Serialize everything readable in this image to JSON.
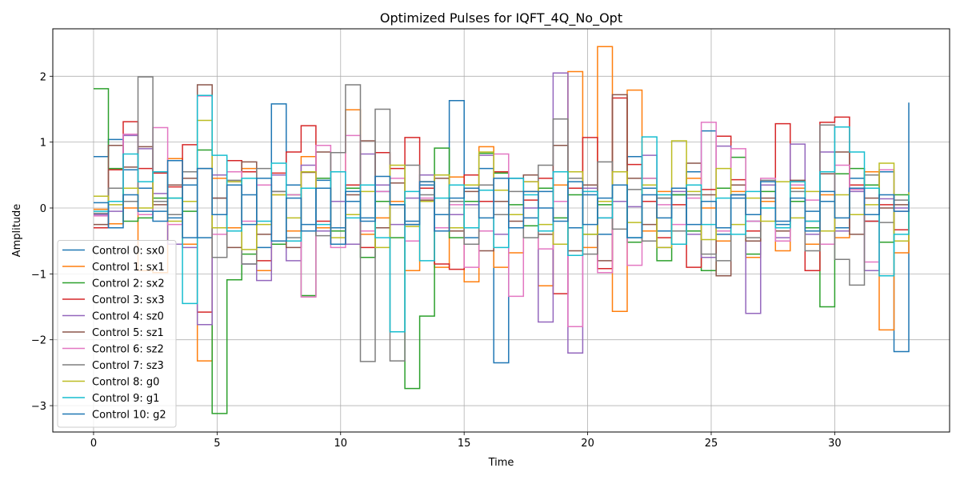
{
  "chart_data": {
    "type": "line",
    "step": true,
    "title": "Optimized Pulses for IQFT_4Q_No_Opt",
    "xlabel": "Time",
    "ylabel": "Amplitude",
    "xlim": [
      -1.65,
      34.65
    ],
    "ylim": [
      -3.4,
      2.72
    ],
    "xticks": [
      0,
      5,
      10,
      15,
      20,
      25,
      30
    ],
    "yticks": [
      -3,
      -2,
      -1,
      0,
      1,
      2
    ],
    "grid": true,
    "legend_position": "lower-left",
    "x": [
      0,
      0.6,
      1.2,
      1.8,
      2.4,
      3.0,
      3.6,
      4.2,
      4.8,
      5.4,
      6.0,
      6.6,
      7.2,
      7.8,
      8.4,
      9.0,
      9.6,
      10.2,
      10.8,
      11.4,
      12.0,
      12.6,
      13.2,
      13.8,
      14.4,
      15.0,
      15.6,
      16.2,
      16.8,
      17.4,
      18.0,
      18.6,
      19.2,
      19.8,
      20.4,
      21.0,
      21.6,
      22.2,
      22.8,
      23.4,
      24.0,
      24.6,
      25.2,
      25.8,
      26.4,
      27.0,
      27.6,
      28.2,
      28.8,
      29.4,
      30.0,
      30.6,
      31.2,
      31.8,
      32.4,
      33.0
    ],
    "series": [
      {
        "name": "Control 0: sx0",
        "color": "#1f77b4",
        "values": [
          0.78,
          1.04,
          0.58,
          0.3,
          -0.05,
          -0.15,
          0.35,
          -0.45,
          0.15,
          -0.35,
          0.2,
          -0.6,
          1.58,
          0.35,
          -0.25,
          0.42,
          -0.3,
          0.1,
          -0.15,
          0.25,
          0.05,
          -0.2,
          0.35,
          -0.1,
          1.63,
          -0.45,
          0.6,
          -2.35,
          0.45,
          -0.15,
          0.25,
          0.55,
          -0.3,
          0.2,
          -0.4,
          0.1,
          0.78,
          0.3,
          -0.35,
          0.2,
          0.55,
          1.17,
          -0.4,
          0.15,
          -0.2,
          0.35,
          -0.25,
          0.4,
          -0.05,
          0.1,
          -0.3,
          0.45,
          -0.2,
          0.55,
          -2.18,
          1.6
        ]
      },
      {
        "name": "Control 1: sx1",
        "color": "#ff7f0e",
        "values": [
          -0.02,
          -0.24,
          0.0,
          -0.95,
          -0.98,
          0.75,
          -0.55,
          -2.32,
          0.45,
          -0.3,
          0.6,
          -0.95,
          0.2,
          -0.35,
          0.78,
          -0.3,
          0.55,
          1.49,
          -0.4,
          -0.15,
          0.1,
          -0.95,
          0.4,
          -0.9,
          0.47,
          -1.12,
          0.93,
          -0.9,
          -0.68,
          0.25,
          -1.18,
          0.35,
          2.07,
          -0.6,
          2.45,
          -1.57,
          1.79,
          -0.35,
          0.25,
          -0.55,
          0.45,
          0.0,
          -0.5,
          0.25,
          -0.75,
          0.1,
          -0.65,
          0.3,
          -0.55,
          0.2,
          -0.45,
          0.3,
          0.55,
          -1.85,
          -0.68,
          0.1
        ]
      },
      {
        "name": "Control 2: sx2",
        "color": "#2ca02c",
        "values": [
          1.81,
          0.6,
          -0.2,
          -0.15,
          0.15,
          0.15,
          -0.05,
          0.88,
          -3.12,
          -1.09,
          -0.7,
          0.35,
          -0.55,
          0.2,
          -1.33,
          0.45,
          -0.35,
          0.3,
          -0.75,
          0.1,
          -0.45,
          -2.74,
          -1.64,
          0.91,
          -0.45,
          0.1,
          0.83,
          0.53,
          0.05,
          -0.27,
          0.3,
          -0.15,
          0.2,
          -0.4,
          0.05,
          0.35,
          -0.52,
          0.45,
          -0.8,
          0.2,
          -0.35,
          -0.95,
          0.3,
          0.77,
          -0.7,
          0.25,
          -0.5,
          0.1,
          -0.3,
          -1.5,
          0.52,
          0.6,
          0.35,
          -0.52,
          0.2,
          -0.3
        ]
      },
      {
        "name": "Control 3: sx3",
        "color": "#d62728",
        "values": [
          -0.3,
          0.58,
          1.31,
          0.6,
          0.53,
          0.32,
          0.96,
          -1.58,
          -0.3,
          0.72,
          0.55,
          -0.8,
          0.53,
          0.85,
          1.25,
          -0.2,
          -0.55,
          0.35,
          -0.6,
          0.84,
          0.6,
          1.07,
          0.3,
          -0.85,
          -0.93,
          0.5,
          0.1,
          0.55,
          -0.3,
          0.12,
          0.45,
          -1.3,
          0.3,
          1.07,
          -0.92,
          1.67,
          0.66,
          0.1,
          -0.45,
          0.05,
          -0.9,
          0.28,
          1.09,
          0.43,
          -0.35,
          0.35,
          1.28,
          0.4,
          -0.95,
          1.3,
          1.38,
          0.35,
          -0.2,
          0.05,
          -0.33,
          0.0
        ]
      },
      {
        "name": "Control 4: sz0",
        "color": "#9467bd",
        "values": [
          -0.1,
          -0.05,
          1.1,
          0.9,
          0.22,
          -0.55,
          -0.6,
          -1.77,
          0.5,
          0.4,
          -0.85,
          -1.1,
          0.5,
          -0.8,
          0.65,
          -0.35,
          0.1,
          -0.55,
          0.82,
          0.35,
          -0.25,
          0.15,
          0.5,
          -0.35,
          -0.1,
          0.05,
          0.8,
          -0.4,
          0.45,
          0.0,
          -1.73,
          2.05,
          -2.2,
          0.3,
          -0.15,
          0.1,
          0.02,
          0.8,
          -0.6,
          0.25,
          -0.4,
          -0.75,
          0.94,
          0.2,
          -1.6,
          0.35,
          -0.45,
          0.97,
          -0.4,
          0.85,
          -0.35,
          0.25,
          -0.95,
          0.14,
          0.0,
          0.1
        ]
      },
      {
        "name": "Control 5: sz1",
        "color": "#8c564b",
        "values": [
          -0.25,
          0.95,
          0.62,
          0.93,
          0.05,
          0.35,
          0.45,
          1.87,
          0.15,
          -0.6,
          0.7,
          -0.4,
          0.25,
          -0.6,
          0.54,
          0.85,
          -0.55,
          0.2,
          1.02,
          -0.3,
          0.38,
          -0.25,
          0.12,
          0.45,
          -0.35,
          0.25,
          -0.65,
          0.1,
          -0.2,
          0.5,
          -0.4,
          0.95,
          -0.65,
          0.35,
          -0.8,
          1.72,
          0.45,
          -0.25,
          0.15,
          -0.55,
          0.68,
          0.2,
          -1.03,
          0.35,
          -0.5,
          0.15,
          -0.35,
          0.42,
          -0.2,
          0.52,
          0.85,
          -0.4,
          0.15,
          0.0,
          0.05,
          0.02
        ]
      },
      {
        "name": "Control 6: sz2",
        "color": "#e377c2",
        "values": [
          -0.12,
          0.1,
          1.12,
          -0.1,
          1.22,
          -0.25,
          0.1,
          1.7,
          -0.4,
          0.55,
          -0.2,
          0.35,
          -0.5,
          0.2,
          -1.35,
          0.95,
          -0.6,
          1.1,
          -0.35,
          0.25,
          0.45,
          -0.5,
          0.15,
          -0.3,
          0.05,
          -0.9,
          -0.35,
          0.82,
          -1.34,
          0.4,
          -0.62,
          0.1,
          -1.8,
          0.25,
          -0.98,
          0.35,
          -0.87,
          0.45,
          0.05,
          -0.25,
          0.15,
          1.3,
          -0.35,
          0.9,
          -0.2,
          0.45,
          -0.5,
          0.35,
          0.12,
          -0.55,
          0.65,
          0.28,
          -0.82,
          0.58,
          -0.05,
          0.1
        ]
      },
      {
        "name": "Control 7: sz3",
        "color": "#7f7f7f",
        "values": [
          -0.08,
          0.3,
          0.1,
          1.99,
          0.1,
          -0.1,
          0.55,
          0.6,
          -0.75,
          0.42,
          -0.85,
          0.6,
          0.25,
          -0.45,
          0.3,
          -0.42,
          0.84,
          1.87,
          -2.33,
          1.5,
          -2.32,
          0.65,
          0.2,
          -0.35,
          0.1,
          -0.55,
          0.35,
          -0.1,
          0.25,
          -0.45,
          0.65,
          1.35,
          0.45,
          -0.7,
          0.7,
          -0.32,
          0.28,
          -0.5,
          0.15,
          -0.35,
          0.2,
          -0.7,
          -0.8,
          0.2,
          -0.45,
          0.42,
          -0.3,
          0.25,
          -0.65,
          1.26,
          -0.78,
          -1.17,
          0.5,
          -0.22,
          0.12,
          0.0
        ]
      },
      {
        "name": "Control 8: g0",
        "color": "#bcbd22",
        "values": [
          0.18,
          0.05,
          0.3,
          0.0,
          0.55,
          -0.2,
          0.1,
          1.33,
          -0.3,
          0.4,
          -0.63,
          -0.25,
          0.2,
          -0.15,
          0.55,
          0.3,
          -0.45,
          -0.1,
          0.25,
          -0.6,
          0.65,
          -0.28,
          0.1,
          0.5,
          -0.3,
          0.35,
          0.85,
          0.27,
          -0.1,
          0.4,
          -0.25,
          -0.55,
          0.55,
          -0.4,
          0.1,
          0.55,
          -0.22,
          0.35,
          -0.6,
          1.02,
          0.25,
          -0.48,
          0.6,
          -0.25,
          0.15,
          -0.2,
          0.4,
          -0.15,
          0.25,
          -0.35,
          0.2,
          -0.1,
          0.05,
          0.68,
          -0.5,
          0.24
        ]
      },
      {
        "name": "Control 9: g1",
        "color": "#17becf",
        "values": [
          -0.05,
          0.1,
          0.82,
          0.4,
          0.55,
          0.15,
          -1.45,
          1.71,
          0.8,
          -0.35,
          0.45,
          -0.2,
          0.68,
          -0.5,
          0.3,
          -0.25,
          0.55,
          -0.15,
          0.35,
          -0.45,
          -1.88,
          0.25,
          -0.8,
          0.15,
          0.35,
          -0.3,
          0.27,
          -0.6,
          0.45,
          0.2,
          -0.35,
          0.55,
          -0.72,
          0.25,
          -0.15,
          0.35,
          -0.45,
          1.08,
          0.2,
          -0.55,
          0.35,
          -0.25,
          0.15,
          -0.4,
          0.25,
          0.0,
          -0.3,
          0.4,
          -0.2,
          0.55,
          1.23,
          0.85,
          0.3,
          -1.03,
          -0.4,
          0.2
        ]
      },
      {
        "name": "Control 10: g2",
        "color": "#1f77b4",
        "values": [
          0.08,
          -0.3,
          0.2,
          -0.05,
          -0.2,
          0.72,
          -0.45,
          0.6,
          -0.1,
          0.35,
          -0.25,
          0.45,
          -0.5,
          0.15,
          -0.35,
          0.3,
          -0.55,
          0.25,
          -0.2,
          0.48,
          0.05,
          -0.25,
          0.4,
          -0.35,
          0.15,
          0.3,
          -0.15,
          0.45,
          -0.3,
          0.25,
          0.0,
          -0.2,
          0.4,
          -0.25,
          0.15,
          0.35,
          -0.45,
          0.2,
          -0.15,
          0.3,
          -0.25,
          0.1,
          -0.3,
          0.2,
          -0.1,
          0.4,
          -0.2,
          0.15,
          -0.35,
          0.25,
          -0.15,
          0.3,
          -0.1,
          0.2,
          -0.05,
          0.1
        ]
      }
    ]
  }
}
